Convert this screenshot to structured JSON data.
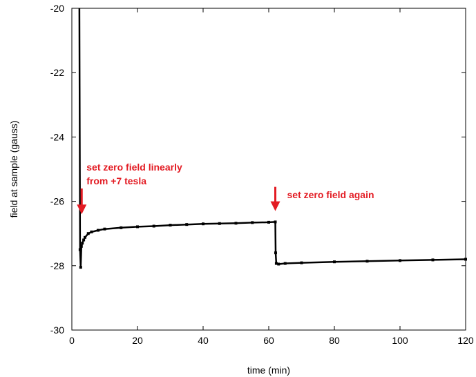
{
  "chart_data": {
    "type": "line",
    "xlabel": "time (min)",
    "ylabel": "field at sample (gauss)",
    "xlim": [
      0,
      120
    ],
    "ylim": [
      -30,
      -20
    ],
    "x_ticks": [
      0,
      20,
      40,
      60,
      80,
      100,
      120
    ],
    "y_ticks": [
      -20,
      -22,
      -24,
      -26,
      -28,
      -30
    ],
    "grid": false,
    "series": [
      {
        "color": "#000000",
        "points": [
          [
            2.3,
            -20.0
          ],
          [
            2.5,
            -27.5
          ],
          [
            2.7,
            -28.05
          ],
          [
            2.9,
            -27.4
          ],
          [
            3.2,
            -27.3
          ],
          [
            3.6,
            -27.2
          ],
          [
            4.0,
            -27.12
          ],
          [
            5.0,
            -27.0
          ],
          [
            6.0,
            -26.95
          ],
          [
            8.0,
            -26.9
          ],
          [
            10.0,
            -26.86
          ],
          [
            15.0,
            -26.82
          ],
          [
            20.0,
            -26.79
          ],
          [
            25.0,
            -26.77
          ],
          [
            30.0,
            -26.74
          ],
          [
            35.0,
            -26.72
          ],
          [
            40.0,
            -26.7
          ],
          [
            45.0,
            -26.69
          ],
          [
            50.0,
            -26.68
          ],
          [
            55.0,
            -26.66
          ],
          [
            60.0,
            -26.65
          ],
          [
            62.0,
            -26.64
          ],
          [
            62.1,
            -27.6
          ],
          [
            62.3,
            -27.93
          ],
          [
            63.0,
            -27.95
          ],
          [
            65.0,
            -27.93
          ],
          [
            70.0,
            -27.91
          ],
          [
            80.0,
            -27.88
          ],
          [
            90.0,
            -27.86
          ],
          [
            100.0,
            -27.84
          ],
          [
            110.0,
            -27.82
          ],
          [
            120.0,
            -27.8
          ]
        ]
      }
    ],
    "annotations": [
      {
        "lines": [
          "set zero field linearly",
          "from +7 tesla"
        ],
        "arrow_x": 3,
        "arrow_y_top": -25.6,
        "arrow_y_tip": -26.4,
        "color": "#e31b23"
      },
      {
        "lines": [
          "set zero field again"
        ],
        "arrow_x": 62,
        "arrow_y_top": -25.55,
        "arrow_y_tip": -26.3,
        "color": "#e31b23"
      }
    ]
  }
}
